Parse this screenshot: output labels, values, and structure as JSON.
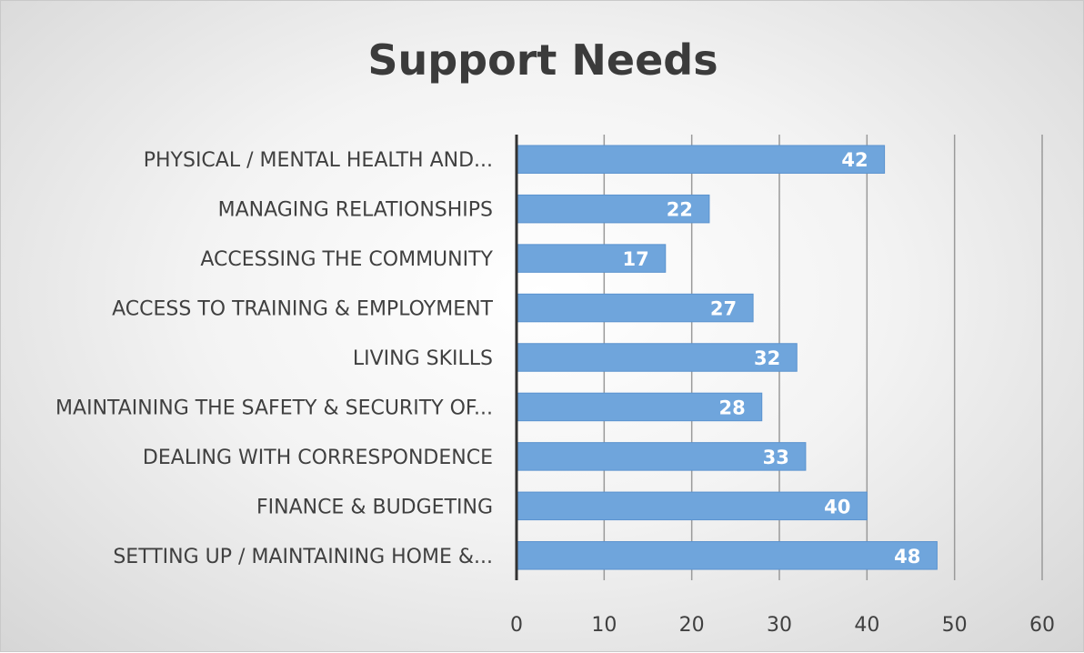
{
  "chart_data": {
    "type": "bar",
    "orientation": "horizontal",
    "title": "Support Needs",
    "categories": [
      "PHYSICAL / MENTAL HEALTH AND...",
      "MANAGING RELATIONSHIPS",
      "ACCESSING THE COMMUNITY",
      "ACCESS TO TRAINING & EMPLOYMENT",
      "LIVING SKILLS",
      "MAINTAINING THE SAFETY & SECURITY OF...",
      "DEALING WITH CORRESPONDENCE",
      "FINANCE & BUDGETING",
      "SETTING UP / MAINTAINING HOME &..."
    ],
    "values": [
      42,
      22,
      17,
      27,
      32,
      28,
      33,
      40,
      48
    ],
    "xlim": [
      0,
      60
    ],
    "xticks": [
      0,
      10,
      20,
      30,
      40,
      50,
      60
    ],
    "grid": true,
    "data_labels": true,
    "colors": {
      "bar": "#6fa5dc",
      "bar_edge": "#5b93cf",
      "gridline": "#9a9a9a",
      "axis": "#333333"
    }
  }
}
